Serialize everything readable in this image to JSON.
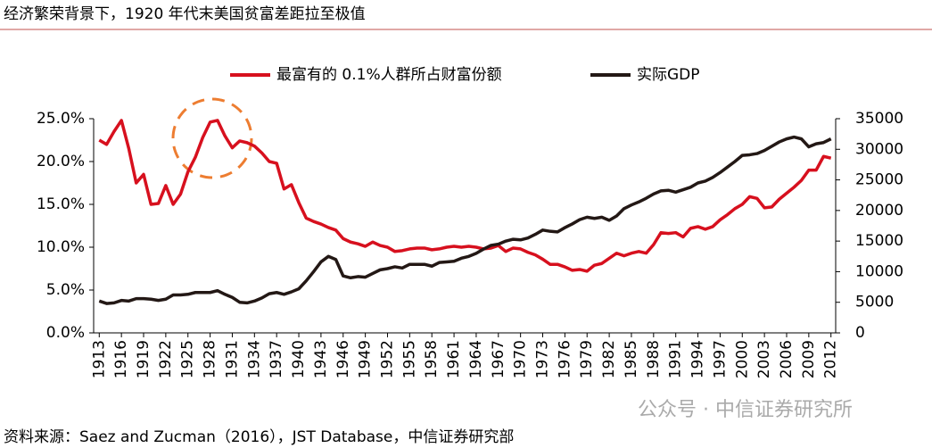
{
  "chart_data": {
    "type": "line",
    "title": "经济繁荣背景下，1920 年代末美国贫富差距拉至极值",
    "source": "资料来源：Saez and Zucman（2016），JST Database，中信证券研究部",
    "watermark": "公众号 · 中信证券研究所",
    "legend": "top",
    "x": [
      1913,
      1914,
      1915,
      1916,
      1917,
      1918,
      1919,
      1920,
      1921,
      1922,
      1923,
      1924,
      1925,
      1926,
      1927,
      1928,
      1929,
      1930,
      1931,
      1932,
      1933,
      1934,
      1935,
      1936,
      1937,
      1938,
      1939,
      1940,
      1941,
      1942,
      1943,
      1944,
      1945,
      1946,
      1947,
      1948,
      1949,
      1950,
      1951,
      1952,
      1953,
      1954,
      1955,
      1956,
      1957,
      1958,
      1959,
      1960,
      1961,
      1962,
      1963,
      1964,
      1965,
      1966,
      1967,
      1968,
      1969,
      1970,
      1971,
      1972,
      1973,
      1974,
      1975,
      1976,
      1977,
      1978,
      1979,
      1980,
      1981,
      1982,
      1983,
      1984,
      1985,
      1986,
      1987,
      1988,
      1989,
      1990,
      1991,
      1992,
      1993,
      1994,
      1995,
      1996,
      1997,
      1998,
      1999,
      2000,
      2001,
      2002,
      2003,
      2004,
      2005,
      2006,
      2007,
      2008,
      2009,
      2010,
      2011,
      2012
    ],
    "xlim": [
      1912,
      2013
    ],
    "xticks": [
      1913,
      1916,
      1919,
      1922,
      1925,
      1928,
      1931,
      1934,
      1937,
      1940,
      1943,
      1946,
      1949,
      1952,
      1955,
      1958,
      1961,
      1964,
      1967,
      1970,
      1973,
      1976,
      1979,
      1982,
      1985,
      1988,
      1991,
      1994,
      1997,
      2000,
      2003,
      2006,
      2009,
      2012
    ],
    "ylim": [
      0,
      25
    ],
    "yticks": [
      {
        "value": 0,
        "label": "0.0%"
      },
      {
        "value": 5,
        "label": "5.0%"
      },
      {
        "value": 10,
        "label": "10.0%"
      },
      {
        "value": 15,
        "label": "15.0%"
      },
      {
        "value": 20,
        "label": "20.0%"
      },
      {
        "value": 25,
        "label": "25.0%"
      }
    ],
    "y2lim": [
      0,
      35000
    ],
    "y2ticks": [
      0,
      5000,
      10000,
      15000,
      20000,
      25000,
      30000,
      35000
    ],
    "series": [
      {
        "name": "最富有的 0.1%人群所占财富份额",
        "color": "#d7101e",
        "values": [
          22.5,
          22.0,
          23.5,
          24.8,
          21.5,
          17.5,
          18.5,
          15.0,
          15.1,
          17.2,
          15.0,
          16.2,
          18.8,
          20.5,
          22.8,
          24.6,
          24.8,
          23.0,
          21.6,
          22.4,
          22.2,
          21.8,
          21.0,
          20.0,
          19.8,
          16.8,
          17.3,
          15.2,
          13.4,
          13.0,
          12.7,
          12.3,
          12.0,
          11.0,
          10.6,
          10.4,
          10.1,
          10.6,
          10.2,
          10.0,
          9.5,
          9.6,
          9.8,
          9.9,
          9.9,
          9.7,
          9.8,
          10.0,
          10.1,
          10.0,
          10.1,
          10.0,
          9.8,
          9.9,
          10.2,
          9.5,
          9.9,
          9.8,
          9.4,
          9.1,
          8.6,
          8.0,
          8.0,
          7.7,
          7.3,
          7.4,
          7.2,
          7.9,
          8.1,
          8.7,
          9.3,
          9.0,
          9.3,
          9.5,
          9.3,
          10.3,
          11.7,
          11.6,
          11.7,
          11.2,
          12.2,
          12.4,
          12.1,
          12.4,
          13.2,
          13.8,
          14.5,
          15.0,
          15.9,
          15.7,
          14.6,
          14.7,
          15.6,
          16.3,
          17.0,
          17.8,
          19.0,
          19.0,
          20.6,
          20.4
        ]
      },
      {
        "name": "实际GDP",
        "color": "#231815",
        "axis": "y2",
        "values": [
          5200,
          4800,
          4900,
          5300,
          5200,
          5600,
          5600,
          5500,
          5300,
          5500,
          6200,
          6200,
          6300,
          6600,
          6600,
          6600,
          6900,
          6300,
          5800,
          5000,
          4900,
          5200,
          5700,
          6400,
          6600,
          6300,
          6700,
          7200,
          8500,
          10000,
          11600,
          12500,
          12000,
          9300,
          9000,
          9200,
          9100,
          9700,
          10300,
          10500,
          10800,
          10600,
          11200,
          11200,
          11200,
          10900,
          11500,
          11600,
          11700,
          12200,
          12500,
          13000,
          13700,
          14300,
          14500,
          15000,
          15300,
          15200,
          15500,
          16100,
          16800,
          16600,
          16500,
          17200,
          17800,
          18500,
          18900,
          18700,
          18900,
          18400,
          19100,
          20300,
          20900,
          21400,
          22000,
          22700,
          23200,
          23300,
          23000,
          23400,
          23800,
          24500,
          24800,
          25400,
          26200,
          27100,
          28000,
          29000,
          29100,
          29300,
          29800,
          30500,
          31200,
          31700,
          32000,
          31700,
          30400,
          30900,
          31100,
          31700
        ]
      }
    ]
  }
}
